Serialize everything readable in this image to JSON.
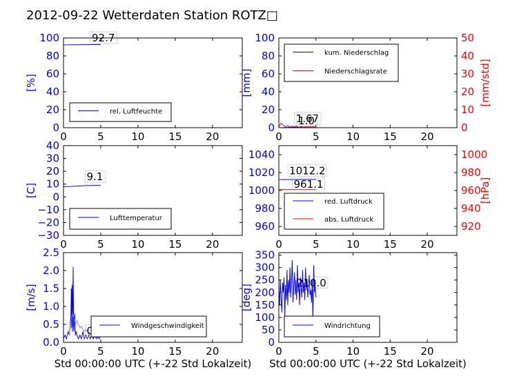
{
  "title": "2012-09-22 Wetterdaten Station ROTZ□",
  "colors": {
    "primary": "#0000ff",
    "secondary": "#ff0000",
    "axis": "#000000",
    "trace_light": "#8080ff"
  },
  "chart_data": [
    {
      "id": "humidity",
      "type": "line",
      "xlim": [
        0,
        24
      ],
      "xticks": [
        0,
        5,
        10,
        15,
        20
      ],
      "show_xticklabels": true,
      "ylim": [
        0,
        100
      ],
      "yticks": [
        0,
        20,
        40,
        60,
        80,
        100
      ],
      "ylabel": "[%]",
      "ylabel_color": "#0000ff",
      "series": [
        {
          "name": "rel. Luftfeuchte",
          "color": "#0000ff",
          "axis": "left",
          "x": [
            0,
            1,
            2,
            3,
            4,
            5
          ],
          "y": [
            92.3,
            92.4,
            92.5,
            92.6,
            92.7,
            92.7
          ]
        }
      ],
      "annotations": [
        {
          "text": "92.7",
          "x": 3.8,
          "y": 96
        }
      ],
      "legend": "lower"
    },
    {
      "id": "precipitation",
      "type": "line",
      "xlim": [
        0,
        24
      ],
      "xticks": [
        0,
        5,
        10,
        15,
        20
      ],
      "show_xticklabels": true,
      "ylim": [
        0,
        100
      ],
      "yticks": [
        0,
        20,
        40,
        60,
        80,
        100
      ],
      "ylabel": "[mm]",
      "ylabel_color": "#0000ff",
      "ylim2": [
        0,
        50
      ],
      "yticks2": [
        0,
        10,
        20,
        30,
        40,
        50
      ],
      "ylabel2": "[mm/std]",
      "ylabel2_color": "#ff0000",
      "series": [
        {
          "name": "kum. Niederschlag",
          "color": "#0000ff",
          "axis": "left",
          "x": [
            0,
            1,
            2,
            3,
            4,
            5
          ],
          "y": [
            0,
            0.3,
            0.6,
            0.8,
            1.0,
            1.0
          ]
        },
        {
          "name": "Niederschlagsrate",
          "color": "#ff0000",
          "axis": "right",
          "x": [
            0,
            0.3,
            0.6,
            0.9,
            1.2,
            1.5,
            1.8,
            2.1,
            2.4,
            2.7,
            3.0,
            3.3,
            3.6,
            3.9,
            4.2,
            4.5,
            4.8,
            5.0
          ],
          "y": [
            0.5,
            2.5,
            1.5,
            0.5,
            1.2,
            0.3,
            0.8,
            0.4,
            1.0,
            0.2,
            0.6,
            0.3,
            0.5,
            0.2,
            0.4,
            0.2,
            0.3,
            0.2
          ]
        }
      ],
      "annotations": [
        {
          "text": "1.67",
          "x": 2.3,
          "y": 6
        },
        {
          "text": "1.0",
          "x": 2.6,
          "y": 4
        }
      ],
      "legend": "upper"
    },
    {
      "id": "temperature",
      "type": "line",
      "xlim": [
        0,
        24
      ],
      "xticks": [
        0,
        5,
        10,
        15,
        20
      ],
      "show_xticklabels": true,
      "ylim": [
        -30,
        40
      ],
      "yticks": [
        -30,
        -20,
        -10,
        0,
        10,
        20,
        30,
        40
      ],
      "ylabel": "[C]",
      "ylabel_color": "#0000ff",
      "series": [
        {
          "name": "Lufttemperatur",
          "color": "#0000ff",
          "axis": "left",
          "x": [
            0,
            1,
            2,
            3,
            4,
            5
          ],
          "y": [
            8.0,
            8.2,
            8.5,
            8.8,
            9.0,
            9.1
          ]
        }
      ],
      "annotations": [
        {
          "text": "9.1",
          "x": 3.1,
          "y": 13
        }
      ],
      "legend": "lower"
    },
    {
      "id": "pressure",
      "type": "line",
      "xlim": [
        0,
        24
      ],
      "xticks": [
        0,
        5,
        10,
        15,
        20
      ],
      "show_xticklabels": true,
      "ylim": [
        950,
        1050
      ],
      "yticks": [
        960,
        980,
        1000,
        1020,
        1040
      ],
      "ylabel": "",
      "ylabel_color": "#0000ff",
      "ylim2": [
        910,
        1010
      ],
      "yticks2": [
        920,
        940,
        960,
        980,
        1000
      ],
      "ylabel2": "[hPa]",
      "ylabel2_color": "#ff0000",
      "series": [
        {
          "name": "red. Luftdruck",
          "color": "#0000ff",
          "axis": "left",
          "x": [
            0,
            1,
            2,
            3,
            4,
            5
          ],
          "y": [
            1012.2,
            1012.2,
            1012.2,
            1012.2,
            1012.2,
            1012.2
          ]
        },
        {
          "name": "abs. Luftdruck",
          "color": "#ff0000",
          "axis": "right",
          "x": [
            0,
            1,
            2,
            3,
            4,
            5
          ],
          "y": [
            961.1,
            961.1,
            961.1,
            961.1,
            961.1,
            961.1
          ]
        }
      ],
      "annotations": [
        {
          "text": "1012.2",
          "x": 1.4,
          "y": 1018
        },
        {
          "text": "961.1",
          "x": 2.0,
          "y": 1003
        }
      ],
      "legend": "lower"
    },
    {
      "id": "wind_speed",
      "type": "line",
      "xlim": [
        0,
        24
      ],
      "xticks": [
        0,
        5,
        10,
        15,
        20
      ],
      "show_xticklabels": true,
      "ylim": [
        0,
        2.5
      ],
      "yticks": [
        0.0,
        0.5,
        1.0,
        1.5,
        2.0,
        2.5
      ],
      "ylabel": "[m/s]",
      "ylabel_color": "#0000ff",
      "xlabel": "Std 00:00:00 UTC (+-22 Std Lokalzeit)",
      "series": [
        {
          "name": "Windgeschwindigkeit",
          "color": "#0000ff",
          "axis": "left",
          "x": [
            0,
            0.2,
            0.4,
            0.6,
            0.8,
            1.0,
            1.05,
            1.1,
            1.15,
            1.2,
            1.3,
            1.35,
            1.4,
            1.5,
            1.6,
            1.7,
            1.8,
            2.0,
            2.2,
            2.4,
            2.6,
            2.8,
            3.0,
            3.2,
            3.4,
            3.6,
            3.8,
            4.0,
            4.2,
            4.4,
            4.6,
            4.8,
            5.0,
            5.2
          ],
          "y": [
            0.1,
            0.2,
            0.1,
            0.3,
            0.2,
            0.8,
            1.5,
            0.4,
            1.6,
            0.3,
            2.1,
            0.5,
            0.3,
            0.8,
            0.2,
            0.3,
            0.2,
            0.1,
            0.2,
            0.1,
            0.3,
            0.1,
            0.2,
            0.1,
            0.2,
            0.1,
            0.2,
            0.1,
            0.2,
            0.1,
            0.15,
            0.1,
            0.2,
            0.15
          ]
        },
        {
          "name": "",
          "color": "#8080ff",
          "axis": "left",
          "x": [
            0.8,
            1.0,
            1.2,
            1.4,
            1.6,
            1.8,
            2.0,
            2.2,
            2.4,
            2.6,
            2.8,
            3.0,
            3.3,
            3.6,
            4.0,
            4.5,
            5.0
          ],
          "y": [
            0.2,
            0.6,
            0.8,
            0.7,
            0.5,
            0.6,
            0.5,
            0.4,
            0.45,
            0.35,
            0.3,
            0.35,
            0.3,
            0.25,
            0.2,
            0.2,
            0.2
          ]
        }
      ],
      "annotations": [
        {
          "text": "0.2",
          "x": 3.1,
          "y": 0.22
        }
      ],
      "legend": "middle"
    },
    {
      "id": "wind_direction",
      "type": "line",
      "xlim": [
        0,
        24
      ],
      "xticks": [
        0,
        5,
        10,
        15,
        20
      ],
      "show_xticklabels": true,
      "ylim": [
        0,
        360
      ],
      "yticks": [
        0,
        50,
        100,
        150,
        200,
        250,
        300,
        350
      ],
      "ylabel": "[deg]",
      "ylabel_color": "#0000ff",
      "xlabel": "Std 00:00:00 UTC (+-22 Std Lokalzeit)",
      "series": [
        {
          "name": "Windrichtung",
          "color": "#0000ff",
          "axis": "left",
          "x": [
            0,
            0.1,
            0.2,
            0.3,
            0.4,
            0.5,
            0.6,
            0.7,
            0.8,
            0.9,
            1.0,
            1.1,
            1.2,
            1.3,
            1.4,
            1.5,
            1.6,
            1.7,
            1.8,
            1.9,
            2.0,
            2.1,
            2.2,
            2.3,
            2.4,
            2.5,
            2.6,
            2.7,
            2.8,
            2.9,
            3.0,
            3.1,
            3.2,
            3.3,
            3.4,
            3.5,
            3.6,
            3.7,
            3.8,
            3.9,
            4.0,
            4.1,
            4.2,
            4.3,
            4.4,
            4.5,
            4.6,
            4.7,
            4.8,
            4.9,
            5.0
          ],
          "y": [
            210,
            150,
            250,
            180,
            120,
            240,
            200,
            260,
            100,
            230,
            170,
            290,
            150,
            250,
            200,
            300,
            180,
            240,
            330,
            160,
            220,
            280,
            190,
            250,
            170,
            310,
            200,
            240,
            150,
            260,
            220,
            180,
            290,
            200,
            240,
            170,
            300,
            210,
            250,
            180,
            230,
            270,
            190,
            210,
            160,
            250,
            80,
            310,
            200,
            230,
            180
          ]
        }
      ],
      "annotations": [
        {
          "text": "210.0",
          "x": 2.4,
          "y": 225
        }
      ],
      "legend": "lower"
    }
  ]
}
